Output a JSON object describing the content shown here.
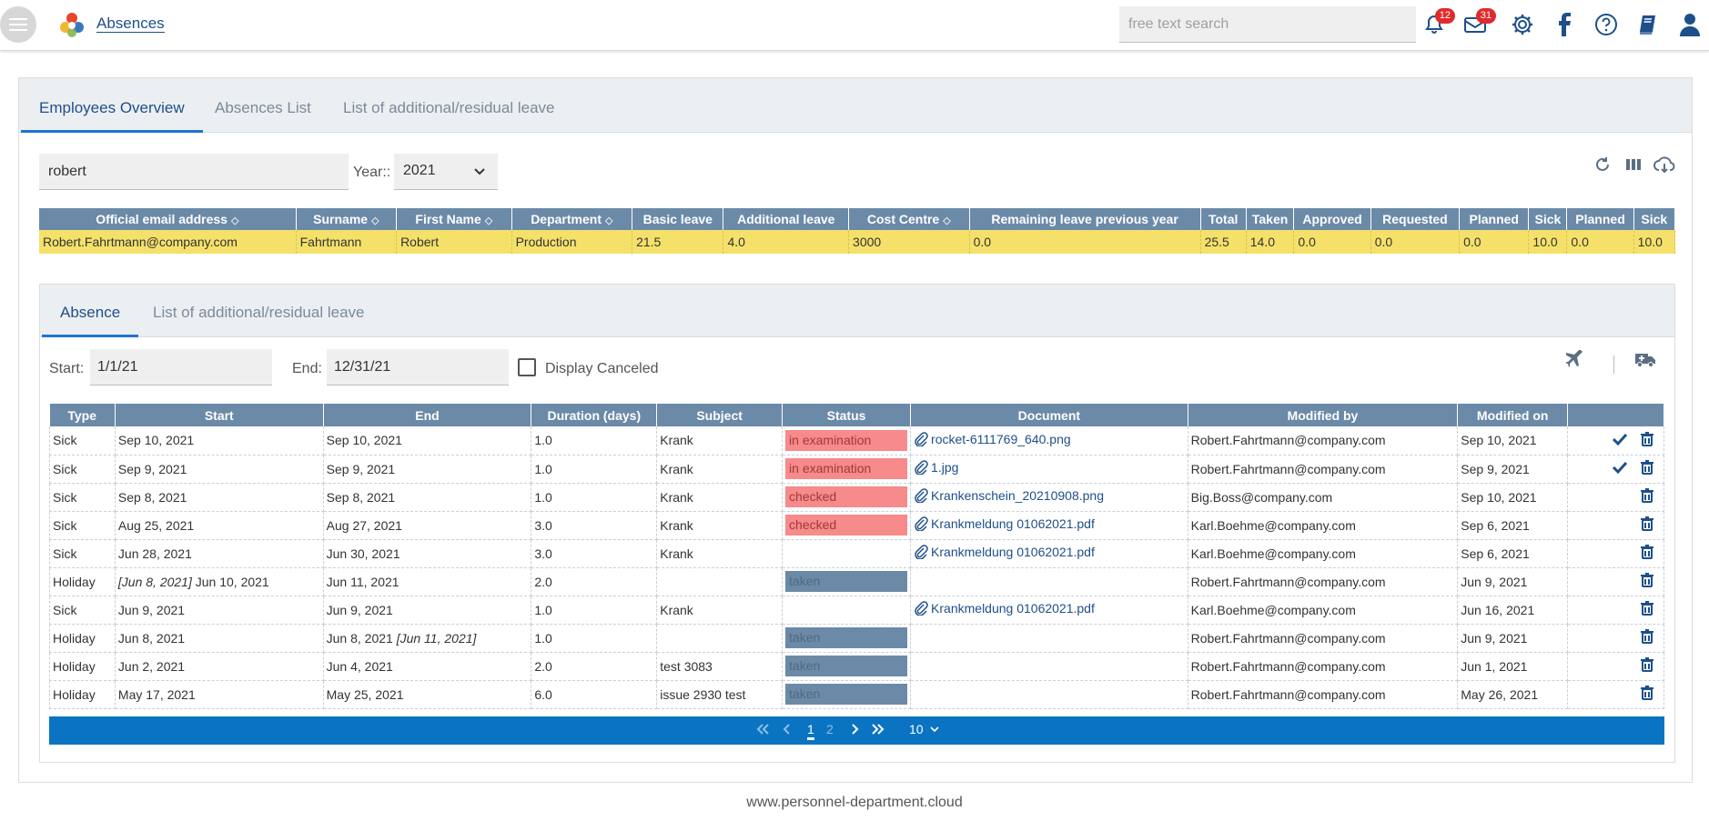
{
  "header": {
    "app_title": "Absences",
    "search_placeholder": "free text search",
    "notifications_count": "12",
    "messages_count": "31"
  },
  "tabs": [
    "Employees Overview",
    "Absences List",
    "List of additional/residual leave"
  ],
  "filters": {
    "name_value": "robert",
    "year_label": "Year::",
    "year_value": "2021"
  },
  "employees": {
    "headers": [
      "Official email address",
      "Surname",
      "First Name",
      "Department",
      "Basic leave",
      "Additional leave",
      "Cost Centre",
      "Remaining leave previous year",
      "Total",
      "Taken",
      "Approved",
      "Requested",
      "Planned",
      "Sick",
      "Planned",
      "Sick"
    ],
    "row": [
      "Robert.Fahrtmann@company.com",
      "Fahrtmann",
      "Robert",
      "Production",
      "21.5",
      "4.0",
      "3000",
      "0.0",
      "25.5",
      "14.0",
      "0.0",
      "0.0",
      "0.0",
      "10.0",
      "0.0",
      "10.0"
    ]
  },
  "subtabs": [
    "Absence",
    "List of additional/residual leave"
  ],
  "absence_filters": {
    "start_label": "Start:",
    "start_value": "1/1/21",
    "end_label": "End:",
    "end_value": "12/31/21",
    "display_canceled_label": "Display Canceled"
  },
  "absences": {
    "headers": [
      "Type",
      "Start",
      "End",
      "Duration (days)",
      "Subject",
      "Status",
      "Document",
      "Modified by",
      "Modified on"
    ],
    "rows": [
      {
        "type": "Sick",
        "start_prefix": "",
        "start": "Sep 10, 2021",
        "end": "Sep 10, 2021",
        "end_suffix": "",
        "duration": "1.0",
        "subject": "Krank",
        "status": "in examination",
        "status_kind": "red",
        "document": "rocket-6111769_640.png",
        "modified_by": "Robert.Fahrtmann@company.com",
        "modified_on": "Sep 10, 2021",
        "approve": true
      },
      {
        "type": "Sick",
        "start_prefix": "",
        "start": "Sep 9, 2021",
        "end": "Sep 9, 2021",
        "end_suffix": "",
        "duration": "1.0",
        "subject": "Krank",
        "status": "in examination",
        "status_kind": "red",
        "document": "1.jpg",
        "modified_by": "Robert.Fahrtmann@company.com",
        "modified_on": "Sep 9, 2021",
        "approve": true
      },
      {
        "type": "Sick",
        "start_prefix": "",
        "start": "Sep 8, 2021",
        "end": "Sep 8, 2021",
        "end_suffix": "",
        "duration": "1.0",
        "subject": "Krank",
        "status": "checked",
        "status_kind": "red",
        "document": "Krankenschein_20210908.png",
        "modified_by": "Big.Boss@company.com",
        "modified_on": "Sep 10, 2021",
        "approve": false
      },
      {
        "type": "Sick",
        "start_prefix": "",
        "start": "Aug 25, 2021",
        "end": "Aug 27, 2021",
        "end_suffix": "",
        "duration": "3.0",
        "subject": "Krank",
        "status": "checked",
        "status_kind": "red",
        "document": "Krankmeldung 01062021.pdf",
        "modified_by": "Karl.Boehme@company.com",
        "modified_on": "Sep 6, 2021",
        "approve": false
      },
      {
        "type": "Sick",
        "start_prefix": "",
        "start": "Jun 28, 2021",
        "end": "Jun 30, 2021",
        "end_suffix": "",
        "duration": "3.0",
        "subject": "Krank",
        "status": "",
        "status_kind": "",
        "document": "Krankmeldung 01062021.pdf",
        "modified_by": "Karl.Boehme@company.com",
        "modified_on": "Sep 6, 2021",
        "approve": false
      },
      {
        "type": "Holiday",
        "start_prefix": "[Jun 8, 2021]",
        "start": "Jun 10, 2021",
        "end": "Jun 11, 2021",
        "end_suffix": "",
        "duration": "2.0",
        "subject": "",
        "status": "taken",
        "status_kind": "blue",
        "document": "",
        "modified_by": "Robert.Fahrtmann@company.com",
        "modified_on": "Jun 9, 2021",
        "approve": false
      },
      {
        "type": "Sick",
        "start_prefix": "",
        "start": "Jun 9, 2021",
        "end": "Jun 9, 2021",
        "end_suffix": "",
        "duration": "1.0",
        "subject": "Krank",
        "status": "",
        "status_kind": "",
        "document": "Krankmeldung 01062021.pdf",
        "modified_by": "Karl.Boehme@company.com",
        "modified_on": "Jun 16, 2021",
        "approve": false
      },
      {
        "type": "Holiday",
        "start_prefix": "",
        "start": "Jun 8, 2021",
        "end": "Jun 8, 2021",
        "end_suffix": "[Jun 11, 2021]",
        "duration": "1.0",
        "subject": "",
        "status": "taken",
        "status_kind": "blue",
        "document": "",
        "modified_by": "Robert.Fahrtmann@company.com",
        "modified_on": "Jun 9, 2021",
        "approve": false
      },
      {
        "type": "Holiday",
        "start_prefix": "",
        "start": "Jun 2, 2021",
        "end": "Jun 4, 2021",
        "end_suffix": "",
        "duration": "2.0",
        "subject": "test 3083",
        "status": "taken",
        "status_kind": "blue",
        "document": "",
        "modified_by": "Robert.Fahrtmann@company.com",
        "modified_on": "Jun 1, 2021",
        "approve": false
      },
      {
        "type": "Holiday",
        "start_prefix": "",
        "start": "May 17, 2021",
        "end": "May 25, 2021",
        "end_suffix": "",
        "duration": "6.0",
        "subject": "issue 2930 test",
        "status": "taken",
        "status_kind": "blue",
        "document": "",
        "modified_by": "Robert.Fahrtmann@company.com",
        "modified_on": "May 26, 2021",
        "approve": false
      }
    ]
  },
  "pagination": {
    "pages": [
      "1",
      "2"
    ],
    "current_page": "1",
    "page_size": "10"
  },
  "footer": {
    "text": "www.personnel-department.cloud"
  },
  "colors": {
    "header_blue": "#6b8aa8",
    "highlight_yellow": "#f5e16a",
    "status_red": "#f78a8a",
    "pager_blue": "#0a74c2",
    "accent": "#1e4f8a"
  }
}
